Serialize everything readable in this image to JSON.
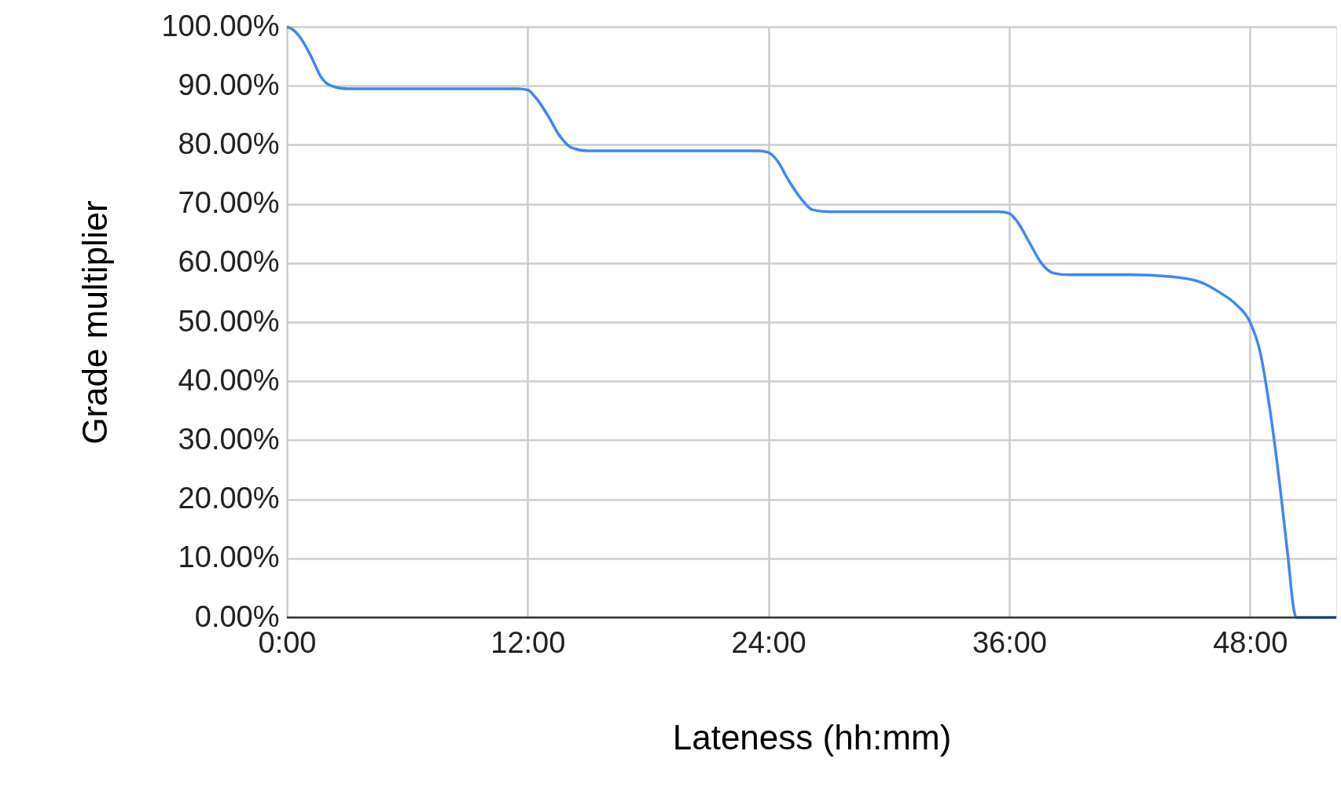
{
  "chart_data": {
    "type": "line",
    "xlabel": "Lateness (hh:mm)",
    "ylabel": "Grade multiplier",
    "x": [
      0,
      0.3,
      0.7,
      1.2,
      1.7,
      2.2,
      3,
      11.5,
      12,
      12.4,
      13,
      13.6,
      14.2,
      15,
      23.5,
      24,
      24.4,
      25,
      25.6,
      26.2,
      27,
      35.5,
      36,
      36.4,
      37,
      37.6,
      38.2,
      39,
      42,
      44,
      45.5,
      46.5,
      47.3,
      48,
      48.5,
      49,
      49.5,
      49.9,
      50.2,
      50.3,
      52.3
    ],
    "series": [
      {
        "color": "#4285f4",
        "values": [
          100,
          99.5,
          98,
          95,
          91.5,
          90,
          89.5,
          89.5,
          89.3,
          88,
          85,
          81.5,
          79.5,
          79,
          79,
          78.7,
          77.5,
          74,
          71,
          69,
          68.7,
          68.7,
          68.4,
          67,
          63.5,
          60,
          58.3,
          58,
          58,
          57.7,
          56.8,
          55,
          53,
          50,
          45,
          35,
          22,
          10,
          1,
          0,
          0
        ]
      }
    ],
    "xlim": [
      0,
      52.3
    ],
    "ylim": [
      0,
      100
    ],
    "xticks": [
      {
        "value": 0,
        "label": "0:00"
      },
      {
        "value": 12,
        "label": "12:00"
      },
      {
        "value": 24,
        "label": "24:00"
      },
      {
        "value": 36,
        "label": "36:00"
      },
      {
        "value": 48,
        "label": "48:00"
      }
    ],
    "yticks": [
      {
        "value": 0,
        "label": "0.00%"
      },
      {
        "value": 10,
        "label": "10.00%"
      },
      {
        "value": 20,
        "label": "20.00%"
      },
      {
        "value": 30,
        "label": "30.00%"
      },
      {
        "value": 40,
        "label": "40.00%"
      },
      {
        "value": 50,
        "label": "50.00%"
      },
      {
        "value": 60,
        "label": "60.00%"
      },
      {
        "value": 70,
        "label": "70.00%"
      },
      {
        "value": 80,
        "label": "80.00%"
      },
      {
        "value": 90,
        "label": "90.00%"
      },
      {
        "value": 100,
        "label": "100.00%"
      }
    ],
    "grid": true,
    "marker": "none",
    "line_style": "solid"
  }
}
